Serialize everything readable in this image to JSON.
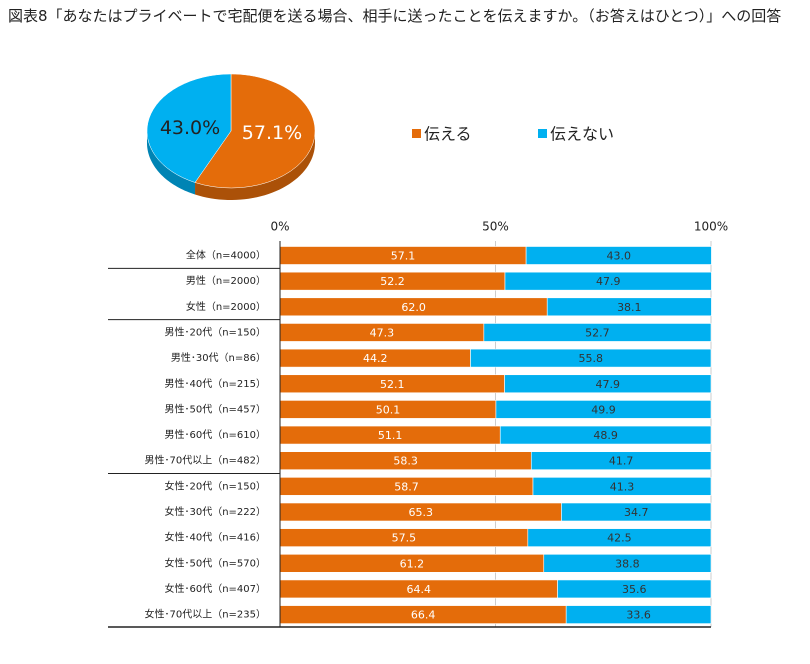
{
  "title": "図表8「あなたはプライベートで宅配便を送る場合、相手に送ったことを伝えますか。（お答えはひとつ）」への回答",
  "chart_data": [
    {
      "type": "pie",
      "categories": [
        "伝える",
        "伝えない"
      ],
      "values": [
        57.1,
        43.0
      ],
      "value_labels": [
        "57.1%",
        "43.0%"
      ],
      "colors": [
        "#e46c0a",
        "#00b0f0"
      ],
      "legend": "right"
    },
    {
      "type": "stacked-bar-horizontal",
      "categories": [
        "全体（n=4000）",
        "男性（n=2000）",
        "女性（n=2000）",
        "男性･20代（n=150）",
        "男性･30代（n=86）",
        "男性･40代（n=215）",
        "男性･50代（n=457）",
        "男性･60代（n=610）",
        "男性･70代以上（n=482）",
        "女性･20代（n=150）",
        "女性･30代（n=222）",
        "女性･40代（n=416）",
        "女性･50代（n=570）",
        "女性･60代（n=407）",
        "女性･70代以上（n=235）"
      ],
      "series": [
        {
          "name": "伝える",
          "color": "#e46c0a",
          "values": [
            57.1,
            52.2,
            62.0,
            47.3,
            44.2,
            52.1,
            50.1,
            51.1,
            58.3,
            58.7,
            65.3,
            57.5,
            61.2,
            64.4,
            66.4
          ],
          "value_labels": [
            "57.1",
            "52.2",
            "62.0",
            "47.3",
            "44.2",
            "52.1",
            "50.1",
            "51.1",
            "58.3",
            "58.7",
            "65.3",
            "57.5",
            "61.2",
            "64.4",
            "66.4"
          ]
        },
        {
          "name": "伝えない",
          "color": "#00b0f0",
          "values": [
            43.0,
            47.9,
            38.1,
            52.7,
            55.8,
            47.9,
            49.9,
            48.9,
            41.7,
            41.3,
            34.7,
            42.5,
            38.8,
            35.6,
            33.6
          ],
          "value_labels": [
            "43.0",
            "47.9",
            "38.1",
            "52.7",
            "55.8",
            "47.9",
            "49.9",
            "48.9",
            "41.7",
            "41.3",
            "34.7",
            "42.5",
            "38.8",
            "35.6",
            "33.6"
          ]
        }
      ],
      "xlim": [
        0,
        100
      ],
      "xticks": [
        {
          "value": 0,
          "label": "0%"
        },
        {
          "value": 50,
          "label": "50%"
        },
        {
          "value": 100,
          "label": "100%"
        }
      ],
      "grid": true
    }
  ]
}
